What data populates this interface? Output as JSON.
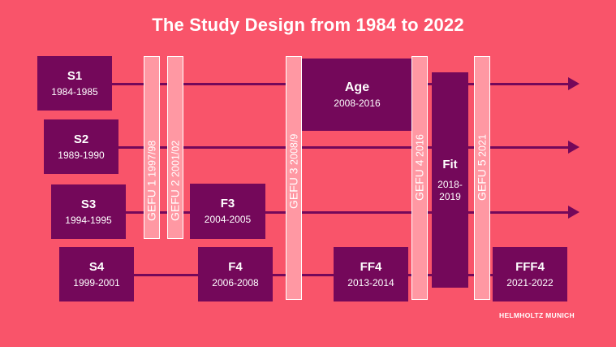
{
  "title": "The Study Design from 1984 to 2022",
  "studies": [
    {
      "name": "S1",
      "years": "1984-1985"
    },
    {
      "name": "S2",
      "years": "1989-1990"
    },
    {
      "name": "S3",
      "years": "1994-1995"
    },
    {
      "name": "S4",
      "years": "1999-2001"
    },
    {
      "name": "F3",
      "years": "2004-2005"
    },
    {
      "name": "F4",
      "years": "2006-2008"
    },
    {
      "name": "Age",
      "years": "2008-2016"
    },
    {
      "name": "FF4",
      "years": "2013-2014"
    },
    {
      "name": "Fit",
      "years_line1": "2018-",
      "years_line2": "2019"
    },
    {
      "name": "FFF4",
      "years": "2021-2022"
    }
  ],
  "gefu": [
    {
      "name": "GEFU 1",
      "years": "1997/98"
    },
    {
      "name": "GEFU 2",
      "years": "2001/02"
    },
    {
      "name": "GEFU 3",
      "years": "2008/9"
    },
    {
      "name": "GEFU 4",
      "years": "2016"
    },
    {
      "name": "GEFU 5",
      "years": "2021"
    }
  ],
  "logo": "HELMHOLTZ MUNICH",
  "colors": {
    "background": "#f9546a",
    "box": "#74085a",
    "gefu_bar": "#ff98a3",
    "text": "#ffffff"
  }
}
